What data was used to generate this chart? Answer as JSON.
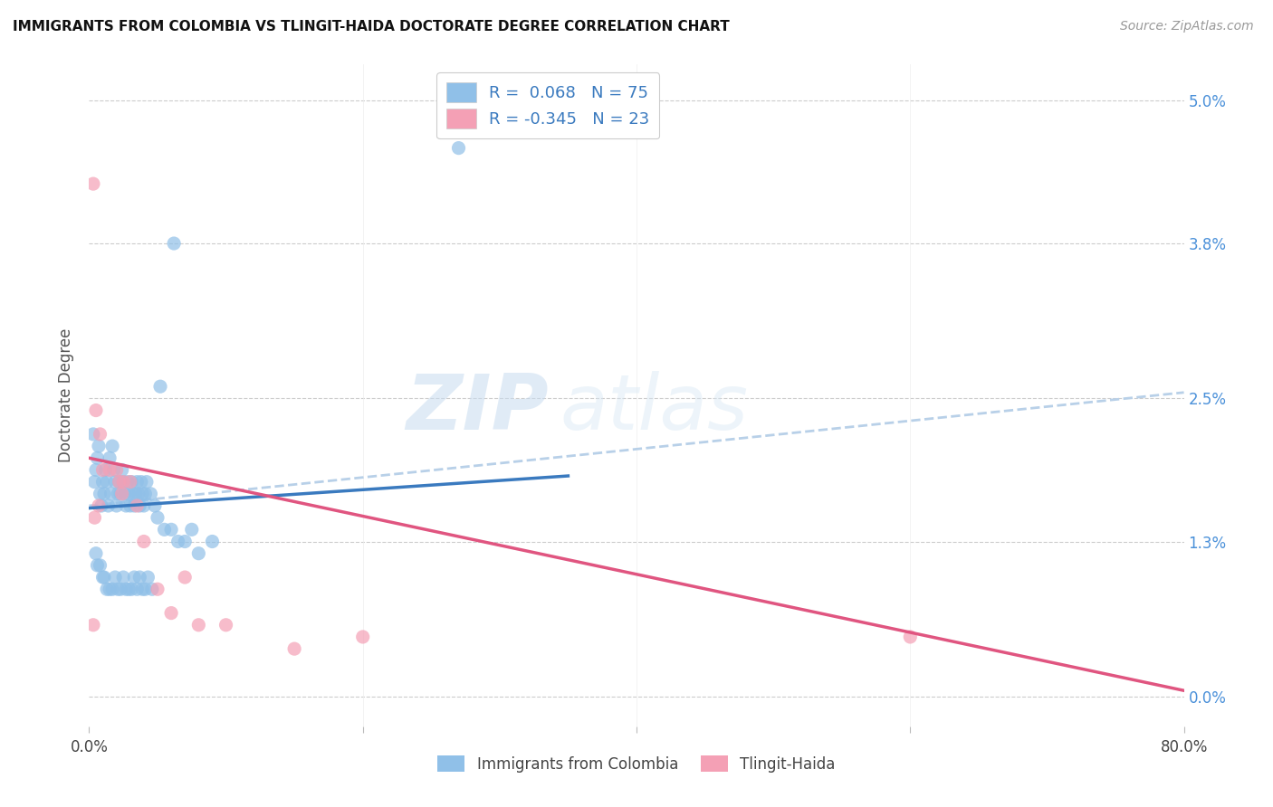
{
  "title": "IMMIGRANTS FROM COLOMBIA VS TLINGIT-HAIDA DOCTORATE DEGREE CORRELATION CHART",
  "source": "Source: ZipAtlas.com",
  "ylabel": "Doctorate Degree",
  "ytick_labels": [
    "0.0%",
    "1.3%",
    "2.5%",
    "3.8%",
    "5.0%"
  ],
  "ytick_values": [
    0.0,
    1.3,
    2.5,
    3.8,
    5.0
  ],
  "xmin": 0.0,
  "xmax": 80.0,
  "ymin": -0.25,
  "ymax": 5.3,
  "legend_entry1": "R =  0.068   N = 75",
  "legend_entry2": "R = -0.345   N = 23",
  "legend_label1": "Immigrants from Colombia",
  "legend_label2": "Tlingit-Haida",
  "color_blue": "#90c0e8",
  "color_pink": "#f4a0b5",
  "color_blue_line": "#3a7abf",
  "color_pink_line": "#e05580",
  "color_dashed": "#b8d0e8",
  "watermark_zip": "ZIP",
  "watermark_atlas": "atlas",
  "blue_scatter_x": [
    0.3,
    0.4,
    0.5,
    0.6,
    0.7,
    0.8,
    0.9,
    1.0,
    1.1,
    1.2,
    1.3,
    1.4,
    1.5,
    1.6,
    1.7,
    1.8,
    1.9,
    2.0,
    2.1,
    2.2,
    2.3,
    2.4,
    2.5,
    2.6,
    2.7,
    2.8,
    2.9,
    3.0,
    3.1,
    3.2,
    3.3,
    3.4,
    3.5,
    3.6,
    3.7,
    3.8,
    3.9,
    4.0,
    4.1,
    4.2,
    4.5,
    4.8,
    5.0,
    5.5,
    6.0,
    6.5,
    7.0,
    7.5,
    8.0,
    9.0,
    0.5,
    0.6,
    0.8,
    1.0,
    1.1,
    1.3,
    1.5,
    1.7,
    1.9,
    2.1,
    2.3,
    2.5,
    2.7,
    2.9,
    3.1,
    3.3,
    3.5,
    3.7,
    3.9,
    4.1,
    4.3,
    4.6,
    5.2,
    6.2,
    27.0
  ],
  "blue_scatter_y": [
    2.2,
    1.8,
    1.9,
    2.0,
    2.1,
    1.7,
    1.6,
    1.8,
    1.7,
    1.9,
    1.8,
    1.6,
    2.0,
    1.7,
    2.1,
    1.9,
    1.8,
    1.6,
    1.7,
    1.8,
    1.7,
    1.9,
    1.8,
    1.7,
    1.6,
    1.8,
    1.7,
    1.6,
    1.8,
    1.7,
    1.6,
    1.7,
    1.8,
    1.7,
    1.6,
    1.8,
    1.7,
    1.6,
    1.7,
    1.8,
    1.7,
    1.6,
    1.5,
    1.4,
    1.4,
    1.3,
    1.3,
    1.4,
    1.2,
    1.3,
    1.2,
    1.1,
    1.1,
    1.0,
    1.0,
    0.9,
    0.9,
    0.9,
    1.0,
    0.9,
    0.9,
    1.0,
    0.9,
    0.9,
    0.9,
    1.0,
    0.9,
    1.0,
    0.9,
    0.9,
    1.0,
    0.9,
    2.6,
    3.8,
    4.6
  ],
  "pink_scatter_x": [
    0.3,
    0.5,
    0.8,
    1.0,
    1.5,
    2.0,
    2.5,
    3.0,
    3.5,
    4.0,
    5.0,
    6.0,
    7.0,
    8.0,
    10.0,
    15.0,
    20.0,
    60.0,
    0.4,
    0.7,
    2.2,
    2.4,
    0.3
  ],
  "pink_scatter_y": [
    4.3,
    2.4,
    2.2,
    1.9,
    1.9,
    1.9,
    1.8,
    1.8,
    1.6,
    1.3,
    0.9,
    0.7,
    1.0,
    0.6,
    0.6,
    0.4,
    0.5,
    0.5,
    1.5,
    1.6,
    1.8,
    1.7,
    0.6
  ],
  "blue_trend_x": [
    0.0,
    35.0
  ],
  "blue_trend_y": [
    1.58,
    1.85
  ],
  "pink_trend_x": [
    0.0,
    80.0
  ],
  "pink_trend_y": [
    2.0,
    0.05
  ],
  "dashed_trend_x": [
    0.0,
    80.0
  ],
  "dashed_trend_y": [
    1.6,
    2.55
  ]
}
